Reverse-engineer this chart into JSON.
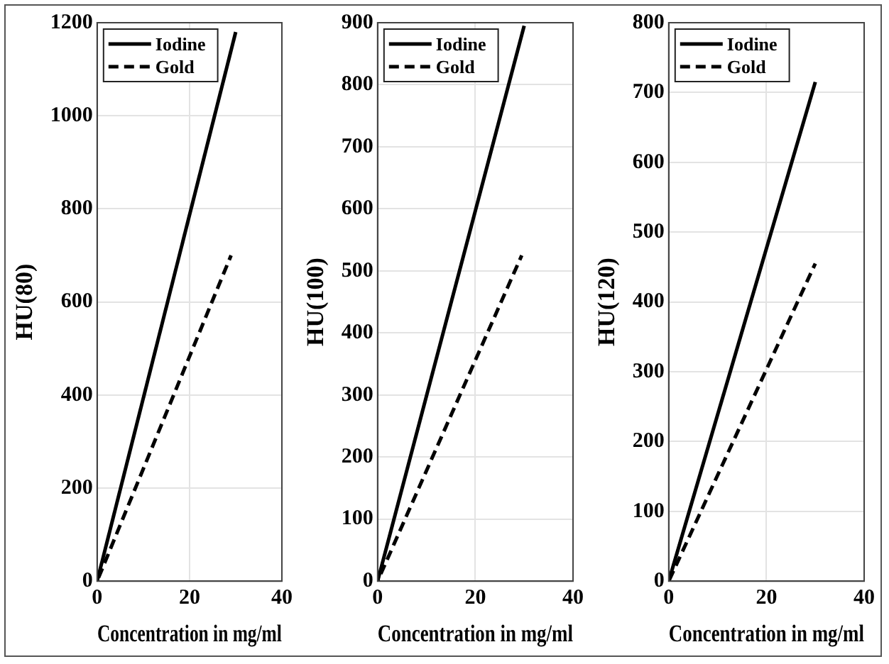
{
  "chart_data": [
    {
      "type": "line",
      "xlabel": "Concentration in mg/ml",
      "ylabel": "HU(80)",
      "xlim": [
        0,
        40
      ],
      "xticks": [
        0,
        20,
        40
      ],
      "ylim": [
        0,
        1200
      ],
      "yticks": [
        0,
        200,
        400,
        600,
        800,
        1000,
        1200
      ],
      "grid": true,
      "legend": "top left",
      "marker": "none",
      "series": [
        {
          "name": "Iodine",
          "color": "#000000",
          "line_style": "solid",
          "x": [
            0,
            30
          ],
          "values": [
            0,
            1180
          ]
        },
        {
          "name": "Gold",
          "color": "#000000",
          "line_style": "dashed",
          "x": [
            0,
            29
          ],
          "values": [
            0,
            700
          ]
        }
      ]
    },
    {
      "type": "line",
      "xlabel": "Concentration in mg/ml",
      "ylabel": "HU(100)",
      "xlim": [
        0,
        40
      ],
      "xticks": [
        0,
        20,
        40
      ],
      "ylim": [
        0,
        900
      ],
      "yticks": [
        0,
        100,
        200,
        300,
        400,
        500,
        600,
        700,
        800,
        900
      ],
      "grid": true,
      "legend": "top left",
      "marker": "none",
      "series": [
        {
          "name": "Iodine",
          "color": "#000000",
          "line_style": "solid",
          "x": [
            0,
            30
          ],
          "values": [
            0,
            895
          ]
        },
        {
          "name": "Gold",
          "color": "#000000",
          "line_style": "dashed",
          "x": [
            0,
            29.5
          ],
          "values": [
            0,
            525
          ]
        }
      ]
    },
    {
      "type": "line",
      "xlabel": "Concentration in mg/ml",
      "ylabel": "HU(120)",
      "xlim": [
        0,
        40
      ],
      "xticks": [
        0,
        20,
        40
      ],
      "ylim": [
        0,
        800
      ],
      "yticks": [
        0,
        100,
        200,
        300,
        400,
        500,
        600,
        700,
        800
      ],
      "grid": true,
      "legend": "top left",
      "marker": "none",
      "series": [
        {
          "name": "Iodine",
          "color": "#000000",
          "line_style": "solid",
          "x": [
            0,
            30
          ],
          "values": [
            0,
            715
          ]
        },
        {
          "name": "Gold",
          "color": "#000000",
          "line_style": "dashed",
          "x": [
            0,
            30
          ],
          "values": [
            0,
            455
          ]
        }
      ]
    }
  ]
}
